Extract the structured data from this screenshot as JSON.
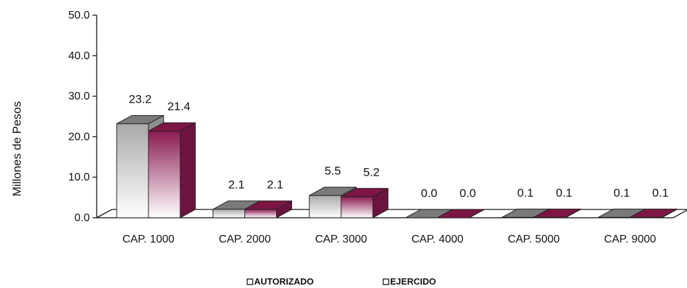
{
  "chart_data": {
    "type": "bar",
    "ylabel": "Millones de Pesos",
    "ylim": [
      0,
      50
    ],
    "yticks": [
      "0.0",
      "10.0",
      "20.0",
      "30.0",
      "40.0",
      "50.0"
    ],
    "categories": [
      "CAP. 1000",
      "CAP. 2000",
      "CAP. 3000",
      "CAP. 4000",
      "CAP. 5000",
      "CAP. 9000"
    ],
    "series": [
      {
        "name": "AUTORIZADO",
        "values": [
          23.2,
          2.1,
          5.5,
          0.0,
          0.1,
          0.1
        ],
        "labels": [
          "23.2",
          "2.1",
          "5.5",
          "0.0",
          "0.1",
          "0.1"
        ],
        "color": "#bdbdbd"
      },
      {
        "name": "EJERCIDO",
        "values": [
          21.4,
          2.1,
          5.2,
          0.0,
          0.1,
          0.1
        ],
        "labels": [
          "21.4",
          "2.1",
          "5.2",
          "0.0",
          "0.1",
          "0.1"
        ],
        "color": "#9b1f5a"
      }
    ],
    "legend_position": "bottom",
    "grid": false,
    "style": "3d-clustered-column"
  }
}
